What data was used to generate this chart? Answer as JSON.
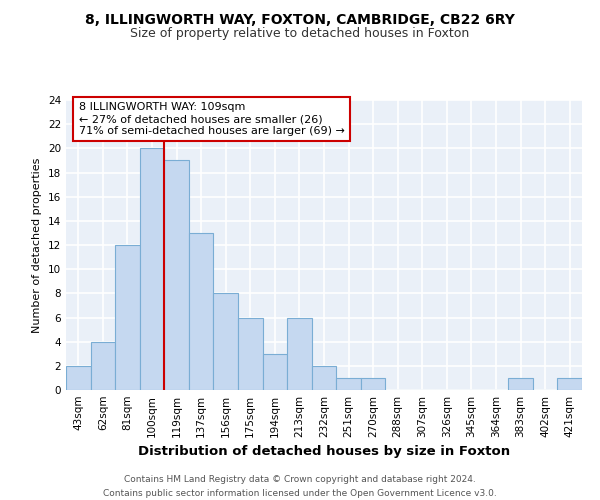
{
  "title1": "8, ILLINGWORTH WAY, FOXTON, CAMBRIDGE, CB22 6RY",
  "title2": "Size of property relative to detached houses in Foxton",
  "xlabel": "Distribution of detached houses by size in Foxton",
  "ylabel": "Number of detached properties",
  "categories": [
    "43sqm",
    "62sqm",
    "81sqm",
    "100sqm",
    "119sqm",
    "137sqm",
    "156sqm",
    "175sqm",
    "194sqm",
    "213sqm",
    "232sqm",
    "251sqm",
    "270sqm",
    "288sqm",
    "307sqm",
    "326sqm",
    "345sqm",
    "364sqm",
    "383sqm",
    "402sqm",
    "421sqm"
  ],
  "values": [
    2,
    4,
    12,
    20,
    19,
    13,
    8,
    6,
    3,
    6,
    2,
    1,
    1,
    0,
    0,
    0,
    0,
    0,
    1,
    0,
    1
  ],
  "bar_color": "#c5d8f0",
  "bar_edge_color": "#7aadd4",
  "subject_line_color": "#cc0000",
  "annotation_text": "8 ILLINGWORTH WAY: 109sqm\n← 27% of detached houses are smaller (26)\n71% of semi-detached houses are larger (69) →",
  "annotation_box_color": "#ffffff",
  "annotation_box_edge_color": "#cc0000",
  "ylim": [
    0,
    24
  ],
  "yticks": [
    0,
    2,
    4,
    6,
    8,
    10,
    12,
    14,
    16,
    18,
    20,
    22,
    24
  ],
  "footnote": "Contains HM Land Registry data © Crown copyright and database right 2024.\nContains public sector information licensed under the Open Government Licence v3.0.",
  "background_color": "#eaf0f8",
  "grid_color": "#ffffff",
  "title1_fontsize": 10,
  "title2_fontsize": 9,
  "xlabel_fontsize": 9.5,
  "ylabel_fontsize": 8,
  "tick_fontsize": 7.5,
  "annotation_fontsize": 8,
  "footnote_fontsize": 6.5
}
